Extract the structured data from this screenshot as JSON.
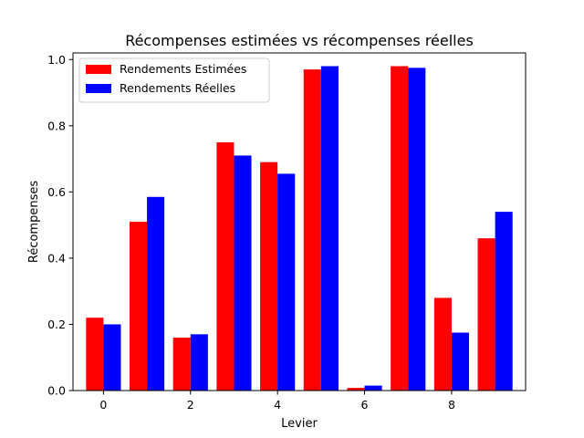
{
  "chart_data": {
    "type": "bar",
    "title": "Récompenses estimées vs récompenses réelles",
    "xlabel": "Levier",
    "ylabel": "Récompenses",
    "categories": [
      0,
      1,
      2,
      3,
      4,
      5,
      6,
      7,
      8,
      9
    ],
    "x_ticks": [
      "0",
      "2",
      "4",
      "6",
      "8"
    ],
    "y_ticks": [
      "0.0",
      "0.2",
      "0.4",
      "0.6",
      "0.8",
      "1.0"
    ],
    "ylim": [
      0,
      1.02
    ],
    "xlim": [
      -0.7,
      9.7
    ],
    "grid": false,
    "legend_position": "upper-left",
    "series": [
      {
        "name": "Rendements Estimées",
        "color": "#ff0000",
        "values": [
          0.22,
          0.51,
          0.16,
          0.75,
          0.69,
          0.97,
          0.008,
          0.98,
          0.28,
          0.46
        ]
      },
      {
        "name": "Rendements Réelles",
        "color": "#0000ff",
        "values": [
          0.2,
          0.585,
          0.17,
          0.71,
          0.655,
          0.98,
          0.015,
          0.975,
          0.175,
          0.54
        ]
      }
    ]
  }
}
